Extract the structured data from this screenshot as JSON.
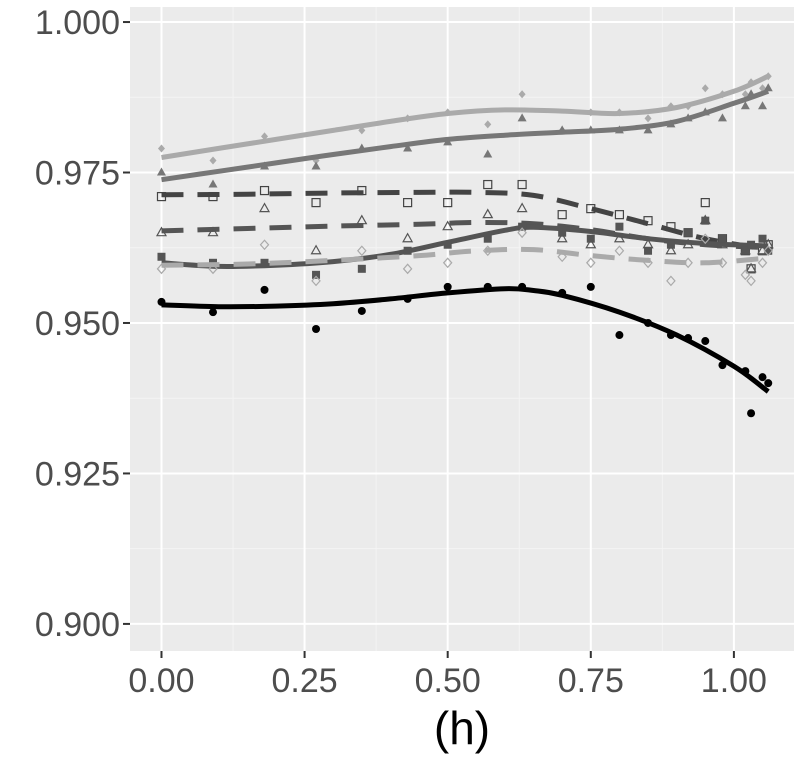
{
  "chart_data": {
    "type": "scatter",
    "title": "",
    "xlabel": "(h)",
    "ylabel": "",
    "xlim": [
      -0.055,
      1.105
    ],
    "ylim": [
      0.8955,
      1.0025
    ],
    "x_ticks": [
      0.0,
      0.25,
      0.5,
      0.75,
      1.0
    ],
    "x_tick_labels": [
      "0.00",
      "0.25",
      "0.50",
      "0.75",
      "1.00"
    ],
    "y_ticks": [
      0.9,
      0.925,
      0.95,
      0.975,
      1.0
    ],
    "y_tick_labels": [
      "0.900",
      "0.925",
      "0.950",
      "0.975",
      "1.000"
    ],
    "grid": true,
    "legend": "none",
    "background": "#EBEBEB",
    "series": [
      {
        "name": "light grey diamonds",
        "color": "#AAAAAA",
        "marker": "diamond-filled",
        "line": "solid",
        "points": [
          [
            0.0,
            0.979
          ],
          [
            0.09,
            0.977
          ],
          [
            0.18,
            0.981
          ],
          [
            0.27,
            0.977
          ],
          [
            0.35,
            0.982
          ],
          [
            0.43,
            0.984
          ],
          [
            0.5,
            0.985
          ],
          [
            0.57,
            0.983
          ],
          [
            0.63,
            0.988
          ],
          [
            0.7,
            0.982
          ],
          [
            0.75,
            0.985
          ],
          [
            0.8,
            0.985
          ],
          [
            0.85,
            0.984
          ],
          [
            0.89,
            0.986
          ],
          [
            0.92,
            0.986
          ],
          [
            0.95,
            0.989
          ],
          [
            0.98,
            0.988
          ],
          [
            1.02,
            0.988
          ],
          [
            1.03,
            0.99
          ],
          [
            1.05,
            0.989
          ],
          [
            1.06,
            0.991
          ]
        ],
        "trend": [
          [
            0.0,
            0.9775
          ],
          [
            0.1,
            0.979
          ],
          [
            0.2,
            0.9805
          ],
          [
            0.3,
            0.982
          ],
          [
            0.4,
            0.9835
          ],
          [
            0.5,
            0.9848
          ],
          [
            0.6,
            0.9854
          ],
          [
            0.7,
            0.9852
          ],
          [
            0.8,
            0.9848
          ],
          [
            0.9,
            0.9858
          ],
          [
            1.0,
            0.9885
          ],
          [
            1.06,
            0.991
          ]
        ]
      },
      {
        "name": "dark grey triangles",
        "color": "#777777",
        "marker": "triangle-filled",
        "line": "solid",
        "points": [
          [
            0.0,
            0.975
          ],
          [
            0.09,
            0.973
          ],
          [
            0.18,
            0.976
          ],
          [
            0.27,
            0.976
          ],
          [
            0.35,
            0.979
          ],
          [
            0.43,
            0.979
          ],
          [
            0.5,
            0.98
          ],
          [
            0.57,
            0.978
          ],
          [
            0.63,
            0.984
          ],
          [
            0.7,
            0.982
          ],
          [
            0.75,
            0.982
          ],
          [
            0.8,
            0.982
          ],
          [
            0.85,
            0.982
          ],
          [
            0.89,
            0.983
          ],
          [
            0.92,
            0.984
          ],
          [
            0.95,
            0.985
          ],
          [
            0.98,
            0.984
          ],
          [
            1.02,
            0.986
          ],
          [
            1.03,
            0.988
          ],
          [
            1.05,
            0.986
          ],
          [
            1.06,
            0.989
          ]
        ],
        "trend": [
          [
            0.0,
            0.9738
          ],
          [
            0.1,
            0.9752
          ],
          [
            0.2,
            0.9766
          ],
          [
            0.3,
            0.978
          ],
          [
            0.4,
            0.9793
          ],
          [
            0.5,
            0.9805
          ],
          [
            0.6,
            0.9812
          ],
          [
            0.7,
            0.9817
          ],
          [
            0.8,
            0.9822
          ],
          [
            0.9,
            0.9835
          ],
          [
            1.0,
            0.9865
          ],
          [
            1.06,
            0.9885
          ]
        ]
      },
      {
        "name": "open squares",
        "color": "#444444",
        "marker": "square-open",
        "line": "dashed",
        "points": [
          [
            0.0,
            0.971
          ],
          [
            0.09,
            0.971
          ],
          [
            0.18,
            0.972
          ],
          [
            0.27,
            0.97
          ],
          [
            0.35,
            0.972
          ],
          [
            0.43,
            0.97
          ],
          [
            0.5,
            0.97
          ],
          [
            0.57,
            0.973
          ],
          [
            0.63,
            0.973
          ],
          [
            0.7,
            0.968
          ],
          [
            0.75,
            0.969
          ],
          [
            0.8,
            0.968
          ],
          [
            0.85,
            0.967
          ],
          [
            0.89,
            0.966
          ],
          [
            0.92,
            0.965
          ],
          [
            0.95,
            0.97
          ],
          [
            0.98,
            0.964
          ],
          [
            1.02,
            0.962
          ],
          [
            1.03,
            0.959
          ],
          [
            1.05,
            0.962
          ],
          [
            1.06,
            0.963
          ]
        ],
        "trend": [
          [
            0.0,
            0.9713
          ],
          [
            0.15,
            0.9714
          ],
          [
            0.3,
            0.9716
          ],
          [
            0.45,
            0.9717
          ],
          [
            0.55,
            0.9717
          ],
          [
            0.65,
            0.9712
          ],
          [
            0.75,
            0.969
          ],
          [
            0.85,
            0.9665
          ],
          [
            0.95,
            0.964
          ],
          [
            1.06,
            0.9622
          ]
        ]
      },
      {
        "name": "open triangles",
        "color": "#555555",
        "marker": "triangle-open",
        "line": "dashed",
        "points": [
          [
            0.0,
            0.965
          ],
          [
            0.09,
            0.965
          ],
          [
            0.18,
            0.969
          ],
          [
            0.27,
            0.962
          ],
          [
            0.35,
            0.967
          ],
          [
            0.43,
            0.964
          ],
          [
            0.5,
            0.966
          ],
          [
            0.57,
            0.968
          ],
          [
            0.63,
            0.969
          ],
          [
            0.7,
            0.964
          ],
          [
            0.75,
            0.963
          ],
          [
            0.8,
            0.964
          ],
          [
            0.85,
            0.963
          ],
          [
            0.89,
            0.962
          ],
          [
            0.92,
            0.963
          ],
          [
            0.95,
            0.967
          ],
          [
            0.98,
            0.963
          ],
          [
            1.02,
            0.962
          ],
          [
            1.03,
            0.959
          ],
          [
            1.05,
            0.962
          ],
          [
            1.06,
            0.963
          ]
        ],
        "trend": [
          [
            0.0,
            0.9653
          ],
          [
            0.15,
            0.9657
          ],
          [
            0.3,
            0.9661
          ],
          [
            0.45,
            0.9664
          ],
          [
            0.55,
            0.9667
          ],
          [
            0.65,
            0.9665
          ],
          [
            0.75,
            0.9655
          ],
          [
            0.85,
            0.964
          ],
          [
            0.95,
            0.963
          ],
          [
            1.06,
            0.9625
          ]
        ]
      },
      {
        "name": "filled squares",
        "color": "#555555",
        "marker": "square-filled",
        "line": "solid",
        "points": [
          [
            0.0,
            0.961
          ],
          [
            0.09,
            0.96
          ],
          [
            0.18,
            0.96
          ],
          [
            0.27,
            0.958
          ],
          [
            0.35,
            0.959
          ],
          [
            0.43,
            0.962
          ],
          [
            0.5,
            0.963
          ],
          [
            0.57,
            0.964
          ],
          [
            0.63,
            0.966
          ],
          [
            0.7,
            0.965
          ],
          [
            0.75,
            0.964
          ],
          [
            0.8,
            0.966
          ],
          [
            0.85,
            0.962
          ],
          [
            0.89,
            0.963
          ],
          [
            0.92,
            0.965
          ],
          [
            0.95,
            0.967
          ],
          [
            0.98,
            0.964
          ],
          [
            1.02,
            0.962
          ],
          [
            1.03,
            0.963
          ],
          [
            1.05,
            0.964
          ],
          [
            1.06,
            0.962
          ]
        ],
        "trend": [
          [
            0.0,
            0.96
          ],
          [
            0.1,
            0.9594
          ],
          [
            0.2,
            0.9596
          ],
          [
            0.3,
            0.9602
          ],
          [
            0.4,
            0.9614
          ],
          [
            0.5,
            0.9634
          ],
          [
            0.6,
            0.9654
          ],
          [
            0.65,
            0.9659
          ],
          [
            0.75,
            0.9652
          ],
          [
            0.85,
            0.964
          ],
          [
            0.95,
            0.9632
          ],
          [
            1.06,
            0.9628
          ]
        ]
      },
      {
        "name": "open diamonds",
        "color": "#AAAAAA",
        "marker": "diamond-open",
        "line": "dashed",
        "points": [
          [
            0.0,
            0.959
          ],
          [
            0.09,
            0.959
          ],
          [
            0.18,
            0.963
          ],
          [
            0.27,
            0.957
          ],
          [
            0.35,
            0.962
          ],
          [
            0.43,
            0.959
          ],
          [
            0.5,
            0.96
          ],
          [
            0.57,
            0.962
          ],
          [
            0.63,
            0.965
          ],
          [
            0.7,
            0.961
          ],
          [
            0.75,
            0.96
          ],
          [
            0.8,
            0.962
          ],
          [
            0.85,
            0.96
          ],
          [
            0.89,
            0.957
          ],
          [
            0.92,
            0.96
          ],
          [
            0.95,
            0.964
          ],
          [
            0.98,
            0.96
          ],
          [
            1.02,
            0.958
          ],
          [
            1.03,
            0.957
          ],
          [
            1.05,
            0.96
          ],
          [
            1.06,
            0.962
          ]
        ],
        "trend": [
          [
            0.0,
            0.9596
          ],
          [
            0.15,
            0.9598
          ],
          [
            0.3,
            0.9604
          ],
          [
            0.45,
            0.9612
          ],
          [
            0.55,
            0.962
          ],
          [
            0.65,
            0.9622
          ],
          [
            0.75,
            0.9612
          ],
          [
            0.85,
            0.9604
          ],
          [
            0.95,
            0.96
          ],
          [
            1.06,
            0.9608
          ]
        ]
      },
      {
        "name": "black circles",
        "color": "#000000",
        "marker": "circle-filled",
        "line": "solid",
        "points": [
          [
            0.0,
            0.9535
          ],
          [
            0.09,
            0.9518
          ],
          [
            0.18,
            0.9555
          ],
          [
            0.27,
            0.949
          ],
          [
            0.35,
            0.952
          ],
          [
            0.43,
            0.954
          ],
          [
            0.5,
            0.956
          ],
          [
            0.57,
            0.956
          ],
          [
            0.63,
            0.956
          ],
          [
            0.7,
            0.955
          ],
          [
            0.75,
            0.956
          ],
          [
            0.8,
            0.948
          ],
          [
            0.85,
            0.95
          ],
          [
            0.89,
            0.948
          ],
          [
            0.92,
            0.9475
          ],
          [
            0.95,
            0.947
          ],
          [
            0.98,
            0.943
          ],
          [
            1.02,
            0.942
          ],
          [
            1.03,
            0.935
          ],
          [
            1.05,
            0.941
          ],
          [
            1.06,
            0.94
          ]
        ],
        "trend": [
          [
            0.0,
            0.953
          ],
          [
            0.1,
            0.9527
          ],
          [
            0.2,
            0.9528
          ],
          [
            0.3,
            0.9532
          ],
          [
            0.4,
            0.954
          ],
          [
            0.5,
            0.955
          ],
          [
            0.6,
            0.9557
          ],
          [
            0.65,
            0.9554
          ],
          [
            0.7,
            0.9546
          ],
          [
            0.8,
            0.9518
          ],
          [
            0.9,
            0.948
          ],
          [
            1.0,
            0.9428
          ],
          [
            1.06,
            0.9386
          ]
        ]
      }
    ]
  }
}
